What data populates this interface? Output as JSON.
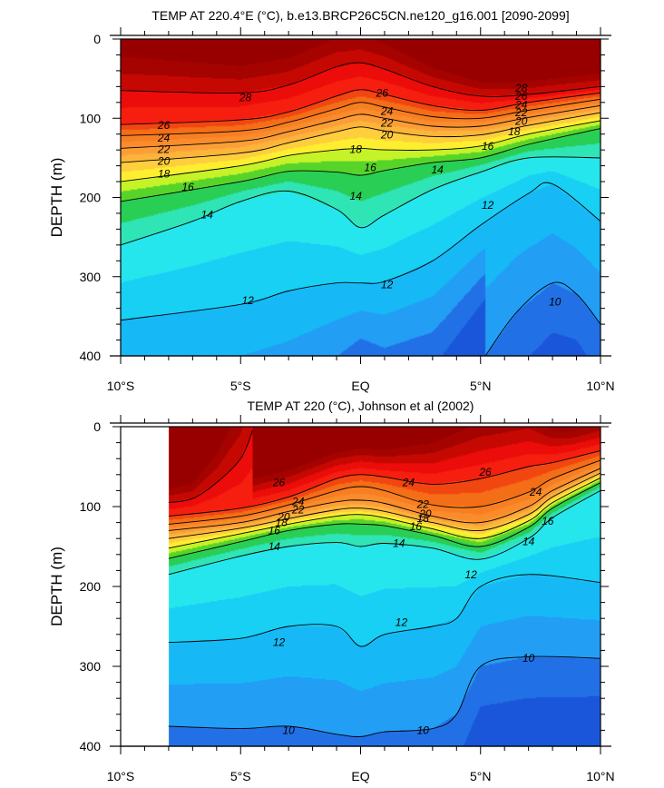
{
  "chart_data": [
    {
      "type": "heatmap",
      "title": "TEMP AT 220.4°E (°C), b.e13.BRCP26C5CN.ne120_g16.001 [2090-2099]",
      "xlabel": "",
      "ylabel": "DEPTH (m)",
      "xlim": [
        -10,
        10
      ],
      "ylim": [
        0,
        400
      ],
      "y_inverted": true,
      "x_tick_values": [
        -10,
        -5,
        0,
        5,
        10
      ],
      "x_tick_labels": [
        "10°S",
        "5°S",
        "EQ",
        "5°N",
        "10°N"
      ],
      "y_tick_values": [
        0,
        100,
        200,
        300,
        400
      ],
      "y_tick_labels": [
        "0",
        "100",
        "200",
        "300",
        "400"
      ],
      "data_start_lat": -10,
      "contour_interval": 1,
      "isotherms": [
        {
          "level": 28,
          "lat": [
            -10,
            -5,
            -3,
            -1,
            0,
            1,
            3,
            5,
            7,
            10
          ],
          "depth": [
            65,
            68,
            58,
            35,
            30,
            38,
            60,
            72,
            70,
            60
          ]
        },
        {
          "level": 26,
          "lat": [
            -10,
            -5,
            -3,
            -1,
            0,
            1,
            3,
            5,
            7,
            10
          ],
          "depth": [
            108,
            102,
            92,
            72,
            64,
            70,
            84,
            90,
            80,
            68
          ]
        },
        {
          "level": 24,
          "lat": [
            -10,
            -5,
            -3,
            -1,
            0,
            1,
            3,
            5,
            7,
            10
          ],
          "depth": [
            122,
            116,
            105,
            88,
            80,
            86,
            98,
            100,
            90,
            76
          ]
        },
        {
          "level": 22,
          "lat": [
            -10,
            -5,
            -3,
            -1,
            0,
            1,
            3,
            5,
            7,
            10
          ],
          "depth": [
            138,
            129,
            117,
            102,
            95,
            100,
            110,
            110,
            99,
            84
          ]
        },
        {
          "level": 20,
          "lat": [
            -10,
            -5,
            -3,
            -1,
            0,
            1,
            3,
            5,
            7,
            10
          ],
          "depth": [
            156,
            144,
            131,
            117,
            111,
            116,
            123,
            121,
            109,
            93
          ]
        },
        {
          "level": 18,
          "lat": [
            -10,
            -5,
            -3,
            -1,
            0,
            1,
            3,
            5,
            7,
            10
          ],
          "depth": [
            180,
            160,
            147,
            140,
            138,
            140,
            140,
            135,
            120,
            103
          ]
        },
        {
          "level": 16,
          "lat": [
            -10,
            -5,
            -3,
            -1,
            0,
            1,
            3,
            5,
            7,
            10
          ],
          "depth": [
            205,
            180,
            167,
            168,
            172,
            166,
            156,
            150,
            133,
            113
          ]
        },
        {
          "level": 14,
          "lat": [
            -10,
            -7,
            -5,
            -3,
            -1,
            0,
            1,
            3,
            5,
            7,
            10
          ],
          "depth": [
            260,
            230,
            205,
            192,
            215,
            238,
            222,
            190,
            168,
            150,
            150
          ]
        },
        {
          "level": 12,
          "lat": [
            -10,
            -5,
            -3,
            -1,
            0,
            1,
            3,
            5,
            7,
            8,
            10
          ],
          "depth": [
            355,
            335,
            318,
            308,
            308,
            306,
            280,
            235,
            195,
            183,
            230
          ]
        },
        {
          "level": 10,
          "lat": [
            5.2,
            6.5,
            8,
            9,
            10
          ],
          "depth": [
            400,
            345,
            308,
            322,
            360
          ]
        }
      ],
      "contour_labels": [
        {
          "text": "28",
          "lat": -4.8,
          "depth": 74
        },
        {
          "text": "26",
          "lat": 0.9,
          "depth": 68
        },
        {
          "text": "28",
          "lat": 6.7,
          "depth": 62
        },
        {
          "text": "26",
          "lat": 6.7,
          "depth": 72
        },
        {
          "text": "24",
          "lat": 6.7,
          "depth": 83
        },
        {
          "text": "22",
          "lat": 6.7,
          "depth": 93
        },
        {
          "text": "20",
          "lat": 6.7,
          "depth": 104
        },
        {
          "text": "18",
          "lat": 6.4,
          "depth": 117
        },
        {
          "text": "26",
          "lat": -8.2,
          "depth": 109
        },
        {
          "text": "24",
          "lat": 1.1,
          "depth": 91
        },
        {
          "text": "24",
          "lat": -8.2,
          "depth": 125
        },
        {
          "text": "22",
          "lat": 1.1,
          "depth": 106
        },
        {
          "text": "22",
          "lat": -8.2,
          "depth": 139
        },
        {
          "text": "20",
          "lat": 1.1,
          "depth": 121
        },
        {
          "text": "20",
          "lat": -8.2,
          "depth": 154
        },
        {
          "text": "18",
          "lat": -0.2,
          "depth": 139
        },
        {
          "text": "18",
          "lat": -8.2,
          "depth": 170
        },
        {
          "text": "16",
          "lat": 5.3,
          "depth": 135
        },
        {
          "text": "16",
          "lat": 0.4,
          "depth": 162
        },
        {
          "text": "16",
          "lat": -7.2,
          "depth": 187
        },
        {
          "text": "14",
          "lat": 3.2,
          "depth": 165
        },
        {
          "text": "14",
          "lat": -0.2,
          "depth": 198
        },
        {
          "text": "14",
          "lat": -6.4,
          "depth": 222
        },
        {
          "text": "12",
          "lat": 1.1,
          "depth": 310
        },
        {
          "text": "12",
          "lat": -4.7,
          "depth": 330
        },
        {
          "text": "12",
          "lat": 5.3,
          "depth": 210
        },
        {
          "text": "10",
          "lat": 8.1,
          "depth": 332
        }
      ]
    },
    {
      "type": "heatmap",
      "title": "TEMP AT 220 (°C), Johnson et al (2002)",
      "xlabel": "",
      "ylabel": "DEPTH (m)",
      "xlim": [
        -10,
        10
      ],
      "ylim": [
        0,
        400
      ],
      "y_inverted": true,
      "x_tick_values": [
        -10,
        -5,
        0,
        5,
        10
      ],
      "x_tick_labels": [
        "10°S",
        "5°S",
        "EQ",
        "5°N",
        "10°N"
      ],
      "y_tick_values": [
        0,
        100,
        200,
        300,
        400
      ],
      "y_tick_labels": [
        "0",
        "100",
        "200",
        "300",
        "400"
      ],
      "data_start_lat": -8,
      "contour_interval": 1,
      "isotherms": [
        {
          "level": 28,
          "lat": [
            -8,
            -7,
            -6,
            -5,
            -4.5
          ],
          "depth": [
            95,
            90,
            70,
            40,
            5
          ]
        },
        {
          "level": 26,
          "lat": [
            -8,
            -5,
            -3,
            -1,
            0,
            1,
            3,
            5,
            7,
            8,
            10
          ],
          "depth": [
            112,
            102,
            88,
            65,
            60,
            63,
            72,
            65,
            50,
            45,
            30
          ]
        },
        {
          "level": 24,
          "lat": [
            -8,
            -5,
            -3,
            -1,
            0,
            1,
            3,
            5,
            7,
            8,
            10
          ],
          "depth": [
            122,
            112,
            98,
            80,
            75,
            80,
            98,
            100,
            82,
            65,
            42
          ]
        },
        {
          "level": 22,
          "lat": [
            -8,
            -5,
            -3,
            -1,
            0,
            1,
            3,
            5,
            7,
            8,
            10
          ],
          "depth": [
            130,
            120,
            106,
            94,
            92,
            96,
            112,
            120,
            100,
            80,
            52
          ]
        },
        {
          "level": 20,
          "lat": [
            -8,
            -5,
            -3,
            -1,
            0,
            1,
            3,
            5,
            7,
            8,
            10
          ],
          "depth": [
            140,
            127,
            115,
            104,
            102,
            106,
            120,
            130,
            110,
            88,
            58
          ]
        },
        {
          "level": 18,
          "lat": [
            -8,
            -5,
            -3,
            -1,
            0,
            1,
            3,
            5,
            7,
            8,
            10
          ],
          "depth": [
            152,
            134,
            122,
            112,
            110,
            114,
            128,
            140,
            118,
            95,
            64
          ]
        },
        {
          "level": 16,
          "lat": [
            -8,
            -5,
            -3,
            -1,
            0,
            1,
            3,
            5,
            7,
            8,
            10
          ],
          "depth": [
            165,
            144,
            130,
            122,
            122,
            124,
            136,
            150,
            126,
            102,
            70
          ]
        },
        {
          "level": 14,
          "lat": [
            -8,
            -5,
            -3,
            -1,
            0,
            1,
            3,
            5,
            7,
            8,
            10
          ],
          "depth": [
            185,
            162,
            150,
            145,
            150,
            146,
            152,
            166,
            140,
            114,
            80
          ]
        },
        {
          "level": 12,
          "lat": [
            -8,
            -5,
            -3,
            -1,
            0,
            1,
            3,
            4,
            5,
            7,
            10
          ],
          "depth": [
            270,
            265,
            250,
            250,
            275,
            260,
            250,
            240,
            200,
            185,
            195
          ]
        },
        {
          "level": 10,
          "lat": [
            -8,
            -5,
            -3,
            -1,
            0,
            1,
            3,
            4,
            5,
            7,
            10
          ],
          "depth": [
            375,
            378,
            375,
            385,
            388,
            382,
            378,
            360,
            300,
            288,
            290
          ]
        }
      ],
      "contour_labels": [
        {
          "text": "26",
          "lat": -3.4,
          "depth": 70
        },
        {
          "text": "24",
          "lat": 2.0,
          "depth": 70
        },
        {
          "text": "26",
          "lat": 5.2,
          "depth": 57
        },
        {
          "text": "24",
          "lat": -2.6,
          "depth": 94
        },
        {
          "text": "24",
          "lat": 7.3,
          "depth": 82
        },
        {
          "text": "22",
          "lat": -2.6,
          "depth": 104
        },
        {
          "text": "22",
          "lat": 2.6,
          "depth": 97
        },
        {
          "text": "20",
          "lat": -3.2,
          "depth": 113
        },
        {
          "text": "20",
          "lat": 2.7,
          "depth": 109
        },
        {
          "text": "18",
          "lat": -3.3,
          "depth": 120
        },
        {
          "text": "18",
          "lat": 2.6,
          "depth": 115
        },
        {
          "text": "16",
          "lat": -3.6,
          "depth": 130
        },
        {
          "text": "16",
          "lat": 2.3,
          "depth": 125
        },
        {
          "text": "16",
          "lat": 7.8,
          "depth": 118
        },
        {
          "text": "14",
          "lat": -3.6,
          "depth": 150
        },
        {
          "text": "14",
          "lat": 1.6,
          "depth": 146
        },
        {
          "text": "14",
          "lat": 7.0,
          "depth": 144
        },
        {
          "text": "12",
          "lat": 4.6,
          "depth": 185
        },
        {
          "text": "12",
          "lat": 1.7,
          "depth": 245
        },
        {
          "text": "12",
          "lat": -3.4,
          "depth": 270
        },
        {
          "text": "10",
          "lat": 7.0,
          "depth": 290
        },
        {
          "text": "10",
          "lat": -3.0,
          "depth": 380
        },
        {
          "text": "10",
          "lat": 2.6,
          "depth": 380
        }
      ]
    }
  ],
  "colors": {
    "stops": [
      {
        "t": 9,
        "c": "#1a56d9"
      },
      {
        "t": 10,
        "c": "#2a8bf2"
      },
      {
        "t": 11,
        "c": "#19b0f5"
      },
      {
        "t": 12,
        "c": "#13c2f6"
      },
      {
        "t": 13,
        "c": "#1edcf2"
      },
      {
        "t": 14,
        "c": "#2ef0e8"
      },
      {
        "t": 15,
        "c": "#30d882"
      },
      {
        "t": 16,
        "c": "#22c428"
      },
      {
        "t": 17,
        "c": "#8ce42c"
      },
      {
        "t": 18,
        "c": "#ffff24"
      },
      {
        "t": 19,
        "c": "#fedc3c"
      },
      {
        "t": 20,
        "c": "#fdc13c"
      },
      {
        "t": 21,
        "c": "#fca83a"
      },
      {
        "t": 22,
        "c": "#fb9332"
      },
      {
        "t": 23,
        "c": "#f98426"
      },
      {
        "t": 24,
        "c": "#f67a1c"
      },
      {
        "t": 25,
        "c": "#f36012"
      },
      {
        "t": 26,
        "c": "#f02d10"
      },
      {
        "t": 27,
        "c": "#fc0e0e"
      },
      {
        "t": 28,
        "c": "#dc0a06"
      },
      {
        "t": 29,
        "c": "#b00600"
      },
      {
        "t": 30,
        "c": "#980000"
      }
    ]
  }
}
